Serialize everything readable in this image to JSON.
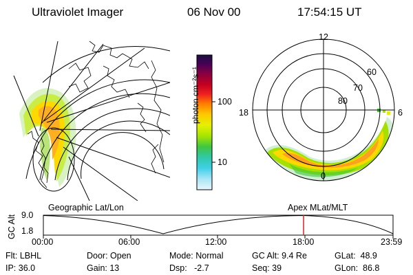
{
  "header": {
    "instrument": "Ultraviolet Imager",
    "date": "06 Nov 00",
    "time": "17:54:15 UT"
  },
  "colorbar": {
    "label": "photon cm⁻²s⁻¹",
    "ticks": [
      "100",
      "10"
    ],
    "colors": [
      "#1a1040",
      "#4a0058",
      "#8a0040",
      "#c40020",
      "#ee2020",
      "#ff7a00",
      "#ffc800",
      "#e6f000",
      "#a8e600",
      "#40c640",
      "#30c8a8",
      "#40d0e8",
      "#a8e6f6",
      "#e8f6fc"
    ]
  },
  "polar_plot": {
    "labels": {
      "mlt12": "12",
      "mlt18": "18",
      "mlt6": "6",
      "mlt0": "0",
      "lat60": "60",
      "lat70": "70",
      "lat80": "80"
    }
  },
  "panel_labels": {
    "left": "Geographic Lat/Lon",
    "right": "Apex MLat/MLT"
  },
  "gc_alt_plot": {
    "axis_label": "GC Alt",
    "yticks": [
      "9.0",
      "1.8"
    ],
    "xticks": [
      "00:00",
      "06:00",
      "12:00",
      "18:00",
      "23:59"
    ],
    "marker_color": "#e02020"
  },
  "info": {
    "filter": "Flt: LBHL",
    "ip": "IP: 36.0",
    "door": "Door: Open",
    "gain": "Gain: 13",
    "mode": "Mode: Normal",
    "dsp": "Dsp:   -2.7",
    "gc_alt": "GC Alt: 9.4 Re",
    "seq": "Seq: 39",
    "glat": "GLat:  48.9",
    "glon": "GLon:  86.8"
  }
}
